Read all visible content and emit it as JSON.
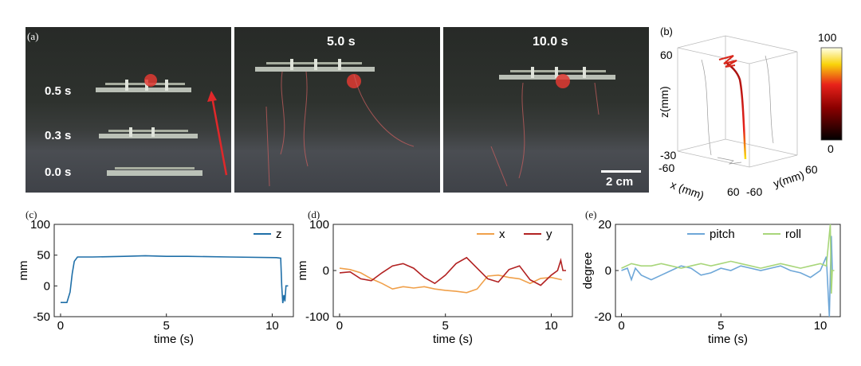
{
  "panels": {
    "a": {
      "label": "(a)",
      "frames": [
        {
          "time_labels": [
            "0.5 s",
            "0.3 s",
            "0.0 s"
          ]
        },
        {
          "time": "5.0 s"
        },
        {
          "time": "10.0 s",
          "scalebar_label": "2 cm"
        }
      ]
    },
    "b": {
      "label": "(b)",
      "zlabel": "z(mm)",
      "xlabel": "x (mm)",
      "ylabel": "y(mm)",
      "z_ticks": [
        "60",
        "-30"
      ],
      "x_ticks": [
        "-60",
        "60"
      ],
      "y_ticks": [
        "60",
        "-60"
      ],
      "colorbar_ticks": [
        "100",
        "0"
      ]
    },
    "c": {
      "label": "(c)"
    },
    "d": {
      "label": "(d)"
    },
    "e": {
      "label": "(e)"
    }
  },
  "colors": {
    "z": "#1f6fa8",
    "x": "#f0a04a",
    "y": "#b22222",
    "pitch": "#6ea7d8",
    "roll": "#a8d67a"
  },
  "chart_data": [
    {
      "id": "c",
      "type": "line",
      "xlabel": "time (s)",
      "ylabel": "mm",
      "xlim": [
        -0.3,
        11
      ],
      "ylim": [
        -50,
        100
      ],
      "xticks": [
        0,
        5,
        10
      ],
      "yticks": [
        -50,
        0,
        50,
        100
      ],
      "series": [
        {
          "name": "z",
          "color": "#1f6fa8",
          "x": [
            0,
            0.3,
            0.45,
            0.55,
            0.65,
            0.8,
            1.5,
            3,
            4,
            5,
            6,
            8,
            10.2,
            10.4,
            10.45,
            10.5,
            10.55,
            10.6,
            10.65,
            10.75
          ],
          "y": [
            -27,
            -27,
            -10,
            20,
            40,
            47,
            47,
            48,
            49,
            48,
            48,
            47,
            46,
            45,
            0,
            -28,
            -15,
            -25,
            0,
            0
          ]
        }
      ]
    },
    {
      "id": "d",
      "type": "line",
      "xlabel": "time (s)",
      "ylabel": "mm",
      "xlim": [
        -0.3,
        11
      ],
      "ylim": [
        -100,
        100
      ],
      "xticks": [
        0,
        5,
        10
      ],
      "yticks": [
        -100,
        0,
        100
      ],
      "series": [
        {
          "name": "x",
          "color": "#f0a04a",
          "x": [
            0,
            0.5,
            1,
            1.5,
            2,
            2.5,
            3,
            3.5,
            4,
            4.5,
            5,
            5.5,
            6,
            6.5,
            7,
            7.5,
            8,
            8.5,
            9,
            9.5,
            10,
            10.5
          ],
          "y": [
            5,
            2,
            -5,
            -18,
            -28,
            -40,
            -35,
            -38,
            -35,
            -40,
            -43,
            -45,
            -48,
            -40,
            -12,
            -10,
            -15,
            -18,
            -28,
            -17,
            -15,
            -20
          ]
        },
        {
          "name": "y",
          "color": "#b22222",
          "x": [
            0,
            0.5,
            1,
            1.5,
            2,
            2.5,
            3,
            3.5,
            4,
            4.5,
            5,
            5.5,
            6,
            6.5,
            7,
            7.5,
            8,
            8.5,
            9,
            9.5,
            10,
            10.3,
            10.45,
            10.55,
            10.7
          ],
          "y": [
            -5,
            -3,
            -18,
            -22,
            -5,
            10,
            15,
            5,
            -15,
            -28,
            -10,
            15,
            28,
            5,
            -18,
            -25,
            2,
            10,
            -20,
            -32,
            -10,
            0,
            22,
            0,
            0
          ]
        }
      ]
    },
    {
      "id": "e",
      "type": "line",
      "xlabel": "time (s)",
      "ylabel": "degree",
      "xlim": [
        -0.3,
        11
      ],
      "ylim": [
        -20,
        20
      ],
      "xticks": [
        0,
        5,
        10
      ],
      "yticks": [
        -20,
        0,
        20
      ],
      "series": [
        {
          "name": "pitch",
          "color": "#6ea7d8",
          "x": [
            0,
            0.3,
            0.5,
            0.7,
            1,
            1.5,
            2,
            2.5,
            3,
            3.5,
            4,
            4.5,
            5,
            5.5,
            6,
            6.5,
            7,
            7.5,
            8,
            8.5,
            9,
            9.5,
            10,
            10.3,
            10.45,
            10.5,
            10.55,
            10.6
          ],
          "y": [
            0,
            1,
            -4,
            1,
            -2,
            -4,
            -2,
            0,
            2,
            1,
            -2,
            -1,
            1,
            0,
            2,
            1,
            0,
            1,
            2,
            0,
            -1,
            -3,
            0,
            6,
            -20,
            -2,
            15,
            0
          ]
        },
        {
          "name": "roll",
          "color": "#a8d67a",
          "x": [
            0,
            0.5,
            1,
            1.5,
            2,
            2.5,
            3,
            3.5,
            4,
            4.5,
            5,
            5.5,
            6,
            6.5,
            7,
            7.5,
            8,
            8.5,
            9,
            9.5,
            10,
            10.3,
            10.5,
            10.55,
            10.6,
            10.7
          ],
          "y": [
            1,
            3,
            2,
            2,
            3,
            2,
            1,
            2,
            3,
            2,
            3,
            4,
            3,
            2,
            1,
            2,
            3,
            2,
            1,
            2,
            3,
            2,
            20,
            -10,
            0,
            0
          ]
        }
      ]
    }
  ]
}
